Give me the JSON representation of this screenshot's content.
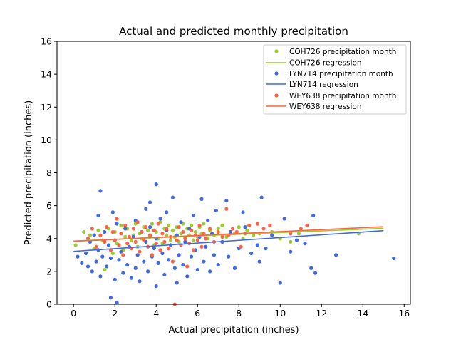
{
  "chart_data": {
    "type": "scatter",
    "title": "Actual and predicted monthly precipitation",
    "xlabel": "Actual precipitation (inches)",
    "ylabel": "Predicted precipitation (inches)",
    "xlim": [
      -0.8,
      16.3
    ],
    "ylim": [
      0,
      16
    ],
    "xticks": [
      0,
      2,
      4,
      6,
      8,
      10,
      12,
      14,
      16
    ],
    "yticks": [
      0,
      2,
      4,
      6,
      8,
      10,
      12,
      14,
      16
    ],
    "grid": false,
    "legend_position": "top-right",
    "series": [
      {
        "name": "COH726 precipitation month",
        "kind": "points",
        "color": "#9acd32",
        "points": [
          [
            0.1,
            3.6
          ],
          [
            0.5,
            4.4
          ],
          [
            0.8,
            4.2
          ],
          [
            1.0,
            3.4
          ],
          [
            1.2,
            4.5
          ],
          [
            1.4,
            3.9
          ],
          [
            1.5,
            2.1
          ],
          [
            1.7,
            4.6
          ],
          [
            1.9,
            3.1
          ],
          [
            2.0,
            4.4
          ],
          [
            2.1,
            3.7
          ],
          [
            2.3,
            4.8
          ],
          [
            2.4,
            3.3
          ],
          [
            2.5,
            4.1
          ],
          [
            2.6,
            4.6
          ],
          [
            2.8,
            3.9
          ],
          [
            2.9,
            4.2
          ],
          [
            3.0,
            4.9
          ],
          [
            3.1,
            3.5
          ],
          [
            3.2,
            4.3
          ],
          [
            3.3,
            4.0
          ],
          [
            3.4,
            4.7
          ],
          [
            3.5,
            3.8
          ],
          [
            3.6,
            4.5
          ],
          [
            3.7,
            4.1
          ],
          [
            3.8,
            4.9
          ],
          [
            3.9,
            3.6
          ],
          [
            4.0,
            4.4
          ],
          [
            4.1,
            4.0
          ],
          [
            4.2,
            5.0
          ],
          [
            4.3,
            3.7
          ],
          [
            4.4,
            4.6
          ],
          [
            4.5,
            4.2
          ],
          [
            4.6,
            4.8
          ],
          [
            4.7,
            3.9
          ],
          [
            4.8,
            4.5
          ],
          [
            4.9,
            4.1
          ],
          [
            5.0,
            4.7
          ],
          [
            5.1,
            3.8
          ],
          [
            5.2,
            4.3
          ],
          [
            5.3,
            4.9
          ],
          [
            5.4,
            4.0
          ],
          [
            5.5,
            4.6
          ],
          [
            5.6,
            4.2
          ],
          [
            5.7,
            4.8
          ],
          [
            5.8,
            3.9
          ],
          [
            5.9,
            4.4
          ],
          [
            6.0,
            4.1
          ],
          [
            6.1,
            4.7
          ],
          [
            6.2,
            4.3
          ],
          [
            6.3,
            4.9
          ],
          [
            6.5,
            4.0
          ],
          [
            6.6,
            4.5
          ],
          [
            6.8,
            4.2
          ],
          [
            7.0,
            4.6
          ],
          [
            7.2,
            4.8
          ],
          [
            7.4,
            4.1
          ],
          [
            7.6,
            4.4
          ],
          [
            7.8,
            4.3
          ],
          [
            8.0,
            4.7
          ],
          [
            8.2,
            4.0
          ],
          [
            8.4,
            4.5
          ],
          [
            8.7,
            4.2
          ],
          [
            9.0,
            4.3
          ],
          [
            9.3,
            3.4
          ],
          [
            9.6,
            4.4
          ],
          [
            10.0,
            4.0
          ],
          [
            10.5,
            3.8
          ],
          [
            10.9,
            4.3
          ],
          [
            13.8,
            4.3
          ]
        ]
      },
      {
        "name": "COH726 regression",
        "kind": "line",
        "color": "#9acd32",
        "x": [
          0,
          15
        ],
        "y": [
          3.85,
          4.62
        ]
      },
      {
        "name": "LYN714 precipitation month",
        "kind": "points",
        "color": "#4169e1",
        "points": [
          [
            0.2,
            2.9
          ],
          [
            0.4,
            2.5
          ],
          [
            0.6,
            3.1
          ],
          [
            0.7,
            2.3
          ],
          [
            0.8,
            3.8
          ],
          [
            0.9,
            2.0
          ],
          [
            1.0,
            4.2
          ],
          [
            1.1,
            2.6
          ],
          [
            1.2,
            3.3
          ],
          [
            1.2,
            5.4
          ],
          [
            1.3,
            1.7
          ],
          [
            1.3,
            6.9
          ],
          [
            1.4,
            2.9
          ],
          [
            1.5,
            4.4
          ],
          [
            1.6,
            2.3
          ],
          [
            1.7,
            3.6
          ],
          [
            1.8,
            0.4
          ],
          [
            1.8,
            2.8
          ],
          [
            1.9,
            5.6
          ],
          [
            2.0,
            1.5
          ],
          [
            2.0,
            3.9
          ],
          [
            2.1,
            4.9
          ],
          [
            2.1,
            0.1
          ],
          [
            2.2,
            2.7
          ],
          [
            2.3,
            3.2
          ],
          [
            2.4,
            1.9
          ],
          [
            2.5,
            4.6
          ],
          [
            2.6,
            2.4
          ],
          [
            2.7,
            3.5
          ],
          [
            2.8,
            1.6
          ],
          [
            2.9,
            4.1
          ],
          [
            3.0,
            2.2
          ],
          [
            3.0,
            5.1
          ],
          [
            3.1,
            3.0
          ],
          [
            3.2,
            1.4
          ],
          [
            3.3,
            4.4
          ],
          [
            3.4,
            2.6
          ],
          [
            3.5,
            3.8
          ],
          [
            3.5,
            5.8
          ],
          [
            3.6,
            2.0
          ],
          [
            3.7,
            4.7
          ],
          [
            3.7,
            6.2
          ],
          [
            3.8,
            2.9
          ],
          [
            3.9,
            3.4
          ],
          [
            4.0,
            1.1
          ],
          [
            4.0,
            4.0
          ],
          [
            4.0,
            7.3
          ],
          [
            4.1,
            2.5
          ],
          [
            4.2,
            5.2
          ],
          [
            4.3,
            3.1
          ],
          [
            4.4,
            1.8
          ],
          [
            4.5,
            4.5
          ],
          [
            4.5,
            5.6
          ],
          [
            4.6,
            2.7
          ],
          [
            4.7,
            3.6
          ],
          [
            4.8,
            6.5
          ],
          [
            4.9,
            2.2
          ],
          [
            5.0,
            4.2
          ],
          [
            5.0,
            1.3
          ],
          [
            5.1,
            3.0
          ],
          [
            5.2,
            5.0
          ],
          [
            5.3,
            2.4
          ],
          [
            5.4,
            3.8
          ],
          [
            5.5,
            1.7
          ],
          [
            5.6,
            4.6
          ],
          [
            5.7,
            2.9
          ],
          [
            5.8,
            5.4
          ],
          [
            5.9,
            3.3
          ],
          [
            6.0,
            2.1
          ],
          [
            6.1,
            4.1
          ],
          [
            6.2,
            6.4
          ],
          [
            6.3,
            2.6
          ],
          [
            6.4,
            3.5
          ],
          [
            6.5,
            5.1
          ],
          [
            6.6,
            2.0
          ],
          [
            6.7,
            4.3
          ],
          [
            6.8,
            3.0
          ],
          [
            6.9,
            5.7
          ],
          [
            7.0,
            2.4
          ],
          [
            7.2,
            3.8
          ],
          [
            7.4,
            6.3
          ],
          [
            7.5,
            2.9
          ],
          [
            7.6,
            4.4
          ],
          [
            7.8,
            2.2
          ],
          [
            8.0,
            3.4
          ],
          [
            8.2,
            5.6
          ],
          [
            8.3,
            4.7
          ],
          [
            8.6,
            3.1
          ],
          [
            8.9,
            3.6
          ],
          [
            9.0,
            2.6
          ],
          [
            9.1,
            6.5
          ],
          [
            9.3,
            3.4
          ],
          [
            9.6,
            4.2
          ],
          [
            10.0,
            1.3
          ],
          [
            10.2,
            5.2
          ],
          [
            10.5,
            3.2
          ],
          [
            10.8,
            3.9
          ],
          [
            11.2,
            3.7
          ],
          [
            11.5,
            2.2
          ],
          [
            11.6,
            5.4
          ],
          [
            11.7,
            1.9
          ],
          [
            12.7,
            3.0
          ],
          [
            15.5,
            2.8
          ]
        ]
      },
      {
        "name": "LYN714 regression",
        "kind": "line",
        "color": "#4169e1",
        "x": [
          0,
          15
        ],
        "y": [
          3.22,
          4.48
        ]
      },
      {
        "name": "WEY638 precipitation month",
        "kind": "points",
        "color": "#ff6347",
        "points": [
          [
            0.7,
            4.0
          ],
          [
            0.9,
            4.6
          ],
          [
            1.1,
            3.5
          ],
          [
            1.3,
            4.2
          ],
          [
            1.5,
            3.8
          ],
          [
            1.6,
            4.7
          ],
          [
            1.8,
            3.3
          ],
          [
            1.9,
            4.4
          ],
          [
            2.0,
            3.9
          ],
          [
            2.1,
            5.2
          ],
          [
            2.2,
            3.6
          ],
          [
            2.3,
            4.3
          ],
          [
            2.4,
            3.0
          ],
          [
            2.5,
            4.8
          ],
          [
            2.6,
            3.7
          ],
          [
            2.7,
            4.1
          ],
          [
            2.8,
            3.4
          ],
          [
            2.9,
            4.6
          ],
          [
            3.0,
            3.8
          ],
          [
            3.1,
            5.0
          ],
          [
            3.2,
            3.2
          ],
          [
            3.3,
            4.4
          ],
          [
            3.4,
            3.9
          ],
          [
            3.5,
            4.7
          ],
          [
            3.6,
            3.5
          ],
          [
            3.7,
            4.2
          ],
          [
            3.8,
            3.0
          ],
          [
            3.9,
            4.5
          ],
          [
            4.0,
            3.7
          ],
          [
            4.1,
            4.9
          ],
          [
            4.2,
            3.3
          ],
          [
            4.3,
            4.3
          ],
          [
            4.4,
            3.8
          ],
          [
            4.5,
            4.6
          ],
          [
            4.6,
            3.4
          ],
          [
            4.7,
            4.1
          ],
          [
            4.8,
            2.6
          ],
          [
            4.9,
            0.0
          ],
          [
            5.0,
            3.9
          ],
          [
            5.1,
            4.7
          ],
          [
            5.2,
            3.6
          ],
          [
            5.3,
            4.4
          ],
          [
            5.4,
            4.0
          ],
          [
            5.5,
            2.3
          ],
          [
            5.6,
            3.7
          ],
          [
            5.7,
            4.5
          ],
          [
            5.8,
            3.3
          ],
          [
            5.9,
            4.2
          ],
          [
            6.0,
            3.9
          ],
          [
            6.1,
            4.8
          ],
          [
            6.2,
            3.5
          ],
          [
            6.3,
            4.3
          ],
          [
            6.4,
            4.0
          ],
          [
            6.6,
            4.6
          ],
          [
            6.8,
            3.8
          ],
          [
            7.0,
            4.4
          ],
          [
            7.2,
            4.1
          ],
          [
            7.4,
            5.8
          ],
          [
            7.5,
            4.2
          ],
          [
            7.7,
            4.6
          ],
          [
            7.9,
            4.4
          ],
          [
            8.1,
            3.5
          ],
          [
            8.3,
            4.3
          ],
          [
            8.5,
            4.8
          ],
          [
            8.9,
            4.9
          ],
          [
            9.2,
            4.6
          ],
          [
            9.5,
            4.8
          ],
          [
            10.5,
            4.3
          ],
          [
            11.0,
            4.6
          ],
          [
            11.3,
            4.8
          ]
        ]
      },
      {
        "name": "WEY638 regression",
        "kind": "line",
        "color": "#ff6347",
        "x": [
          0,
          15
        ],
        "y": [
          3.83,
          4.72
        ]
      }
    ]
  }
}
